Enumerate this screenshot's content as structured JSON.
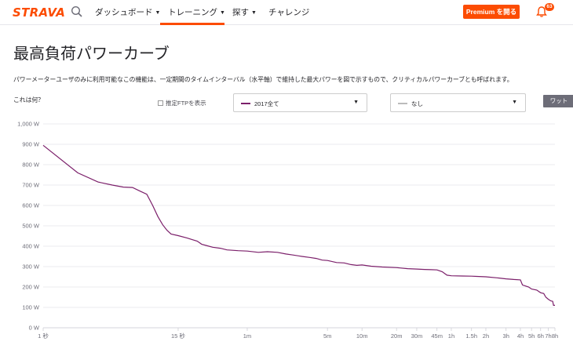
{
  "nav": {
    "logo": "STRAVA",
    "items": [
      {
        "label": "ダッシュボード",
        "chevron": true
      },
      {
        "label": "トレーニング",
        "chevron": true
      },
      {
        "label": "探す",
        "chevron": true
      },
      {
        "label": "チャレンジ",
        "chevron": false
      }
    ],
    "premium_label": "Premium を開る",
    "notification_count": "63",
    "accent_color": "#fc4c02"
  },
  "page": {
    "title": "最高負荷パワーカーブ",
    "description": "パワーメーターユーザのみに利用可能なこの機能は、一定期間のタイムインターバル（水平軸）で維持した最大パワーを図で示すもので、クリティカルパワーカーブとも呼ばれます。",
    "whatis": "これは何？"
  },
  "controls": {
    "ftp_label": "推定FTPを表示",
    "ftp_checked": false,
    "select1": {
      "value": "2017全て",
      "color": "#7b1f6a"
    },
    "select2": {
      "value": "なし",
      "color": "#bbbbbb"
    },
    "unit_button": "ワット"
  },
  "chart_data": {
    "type": "line",
    "x_scale": "log-time",
    "ylim": [
      0,
      1000
    ],
    "y_ticks": [
      "1,000 W",
      "900 W",
      "800 W",
      "700 W",
      "600 W",
      "500 W",
      "400 W",
      "300 W",
      "200 W",
      "100 W",
      "0 W"
    ],
    "x_ticks": [
      "1 秒",
      "15 秒",
      "1m",
      "5m",
      "10m",
      "20m",
      "30m",
      "45m",
      "1h",
      "1.5h",
      "2h",
      "3h",
      "4h",
      "5h",
      "6h",
      "7h",
      "8h"
    ],
    "x_tick_seconds": [
      1,
      15,
      60,
      300,
      600,
      1200,
      1800,
      2700,
      3600,
      5400,
      7200,
      10800,
      14400,
      18000,
      21600,
      25200,
      28800
    ],
    "grid": true,
    "series": [
      {
        "color": "#7b1f6a",
        "points": [
          [
            1,
            895
          ],
          [
            2,
            760
          ],
          [
            3,
            715
          ],
          [
            4,
            700
          ],
          [
            5,
            690
          ],
          [
            6,
            688
          ],
          [
            7,
            670
          ],
          [
            8,
            655
          ],
          [
            9,
            600
          ],
          [
            10,
            545
          ],
          [
            11,
            505
          ],
          [
            12,
            478
          ],
          [
            13,
            460
          ],
          [
            15,
            452
          ],
          [
            18,
            440
          ],
          [
            20,
            432
          ],
          [
            22,
            425
          ],
          [
            24,
            410
          ],
          [
            27,
            402
          ],
          [
            30,
            395
          ],
          [
            35,
            390
          ],
          [
            40,
            382
          ],
          [
            50,
            378
          ],
          [
            60,
            376
          ],
          [
            75,
            370
          ],
          [
            90,
            373
          ],
          [
            110,
            370
          ],
          [
            130,
            362
          ],
          [
            150,
            357
          ],
          [
            180,
            350
          ],
          [
            210,
            345
          ],
          [
            240,
            340
          ],
          [
            270,
            332
          ],
          [
            300,
            330
          ],
          [
            360,
            320
          ],
          [
            420,
            318
          ],
          [
            480,
            310
          ],
          [
            540,
            306
          ],
          [
            600,
            308
          ],
          [
            720,
            302
          ],
          [
            900,
            298
          ],
          [
            1200,
            295
          ],
          [
            1500,
            290
          ],
          [
            1800,
            288
          ],
          [
            2100,
            286
          ],
          [
            2400,
            285
          ],
          [
            2700,
            284
          ],
          [
            3000,
            275
          ],
          [
            3300,
            258
          ],
          [
            3600,
            255
          ],
          [
            4500,
            254
          ],
          [
            5400,
            253
          ],
          [
            6000,
            252
          ],
          [
            7200,
            250
          ],
          [
            9000,
            245
          ],
          [
            10800,
            240
          ],
          [
            12600,
            237
          ],
          [
            14400,
            235
          ],
          [
            15000,
            210
          ],
          [
            17000,
            200
          ],
          [
            18000,
            190
          ],
          [
            20000,
            185
          ],
          [
            21600,
            172
          ],
          [
            23000,
            168
          ],
          [
            24000,
            150
          ],
          [
            25200,
            140
          ],
          [
            26500,
            132
          ],
          [
            27500,
            130
          ],
          [
            28000,
            110
          ],
          [
            28800,
            110
          ]
        ]
      }
    ]
  }
}
